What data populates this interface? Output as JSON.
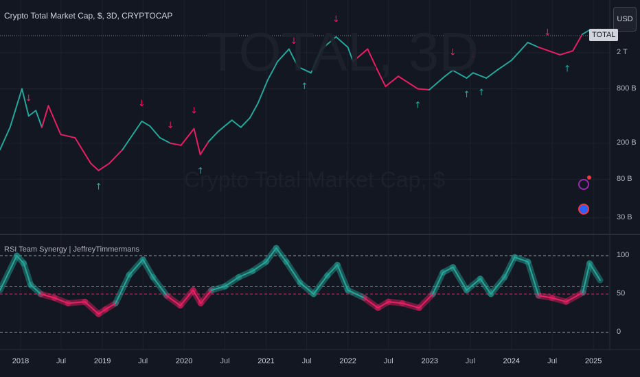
{
  "header": {
    "title": "Crypto Total Market Cap, $, 3D, CRYPTOCAP",
    "currency_button": "USD",
    "symbol_tag": "TOTAL"
  },
  "watermark": {
    "symbol": "TOTAL, 3D",
    "description": "Crypto Total Market Cap, $"
  },
  "indicator": {
    "title": "RSI Team Synergy | JeffreyTimmermans"
  },
  "colors": {
    "bull": "#26a69a",
    "bear": "#e91e63",
    "background": "#131722",
    "grid": "#1e222d"
  },
  "icons": [
    "lightning-icon",
    "us-flag-icon"
  ],
  "chart_data": [
    {
      "type": "line",
      "title": "Crypto Total Market Cap, $, 3D, CRYPTOCAP",
      "y_scale": "log",
      "y_ticks": [
        {
          "value": 2000000000000,
          "label": "2 T"
        },
        {
          "value": 800000000000,
          "label": "800 B"
        },
        {
          "value": 200000000000,
          "label": "200 B"
        },
        {
          "value": 80000000000,
          "label": "80 B"
        },
        {
          "value": 30000000000,
          "label": "30 B"
        }
      ],
      "x_ticks": [
        "2018",
        "Jul",
        "2019",
        "Jul",
        "2020",
        "Jul",
        "2021",
        "Jul",
        "2022",
        "Jul",
        "2023",
        "Jul",
        "2024",
        "Jul",
        "2025"
      ],
      "series": [
        {
          "x": [
            "2017-10-01",
            "2017-11-15",
            "2018-01-07",
            "2018-02-06",
            "2018-03-10",
            "2018-04-06",
            "2018-05-05",
            "2018-06-29",
            "2018-09-01",
            "2018-11-10",
            "2018-12-15",
            "2019-02-01",
            "2019-04-01",
            "2019-06-26",
            "2019-08-01",
            "2019-09-15",
            "2019-11-01",
            "2019-12-18",
            "2020-02-14",
            "2020-03-13",
            "2020-04-20",
            "2020-06-01",
            "2020-08-01",
            "2020-09-10",
            "2020-10-20",
            "2020-11-25",
            "2021-01-08",
            "2021-02-21",
            "2021-04-13",
            "2021-05-23",
            "2021-07-20",
            "2021-09-06",
            "2021-11-09",
            "2022-01-01",
            "2022-01-24",
            "2022-03-30",
            "2022-05-12",
            "2022-06-18",
            "2022-08-14",
            "2022-11-09",
            "2022-12-30",
            "2023-03-10",
            "2023-04-14",
            "2023-06-15",
            "2023-07-14",
            "2023-09-11",
            "2023-11-01",
            "2024-01-01",
            "2024-03-14",
            "2024-05-01",
            "2024-08-05",
            "2024-10-01",
            "2024-11-12",
            "2024-12-17",
            "2025-01-31"
          ],
          "y": [
            170,
            300,
            800,
            400,
            460,
            300,
            520,
            250,
            230,
            120,
            100,
            120,
            170,
            350,
            310,
            230,
            200,
            190,
            290,
            150,
            210,
            270,
            360,
            300,
            380,
            550,
            1000,
            1600,
            2200,
            1400,
            1200,
            2200,
            3000,
            2300,
            1600,
            2200,
            1300,
            850,
            1100,
            800,
            780,
            1100,
            1280,
            1050,
            1200,
            1050,
            1300,
            1650,
            2600,
            2300,
            1900,
            2100,
            3200,
            3600,
            3300
          ],
          "color_rule": "green when RSI above 50, red when below"
        }
      ],
      "signals": {
        "sell_arrows": [
          "2018-02-06",
          "2019-06-26",
          "2019-11-01",
          "2020-02-14",
          "2021-05-05",
          "2021-11-09",
          "2023-04-14",
          "2023-07-14",
          "2024-06-10"
        ],
        "buy_arrows": [
          "2018-12-15",
          "2020-03-13",
          "2021-06-21",
          "2022-11-09",
          "2023-06-15",
          "2023-08-20",
          "2024-09-06"
        ]
      }
    },
    {
      "type": "line",
      "title": "RSI Team Synergy | JeffreyTimmermans",
      "ylim": [
        0,
        100
      ],
      "y_ticks": [
        0,
        50,
        100
      ],
      "levels": [
        100,
        60,
        50,
        0
      ],
      "series": [
        {
          "x": [
            "2017-10-01",
            "2017-12-15",
            "2018-01-15",
            "2018-02-15",
            "2018-04-01",
            "2018-06-01",
            "2018-08-01",
            "2018-10-15",
            "2018-12-15",
            "2019-01-15",
            "2019-03-01",
            "2019-05-01",
            "2019-07-01",
            "2019-08-15",
            "2019-10-15",
            "2019-12-15",
            "2020-02-10",
            "2020-03-15",
            "2020-05-01",
            "2020-07-01",
            "2020-09-01",
            "2020-11-01",
            "2021-01-01",
            "2021-02-15",
            "2021-04-01",
            "2021-06-01",
            "2021-08-01",
            "2021-10-01",
            "2021-11-15",
            "2022-01-01",
            "2022-03-15",
            "2022-05-15",
            "2022-07-01",
            "2022-09-01",
            "2022-11-15",
            "2023-01-15",
            "2023-03-01",
            "2023-04-15",
            "2023-06-15",
            "2023-08-15",
            "2023-10-01",
            "2023-12-01",
            "2024-01-15",
            "2024-03-15",
            "2024-05-01",
            "2024-07-01",
            "2024-09-01",
            "2024-11-15",
            "2024-12-15",
            "2025-01-31"
          ],
          "y": [
            55,
            100,
            90,
            62,
            50,
            45,
            38,
            40,
            24,
            30,
            38,
            75,
            95,
            72,
            48,
            35,
            55,
            38,
            55,
            60,
            72,
            80,
            92,
            110,
            92,
            65,
            50,
            74,
            88,
            55,
            45,
            32,
            40,
            38,
            32,
            50,
            78,
            85,
            55,
            70,
            50,
            72,
            98,
            92,
            48,
            45,
            40,
            52,
            90,
            68
          ]
        }
      ]
    }
  ]
}
